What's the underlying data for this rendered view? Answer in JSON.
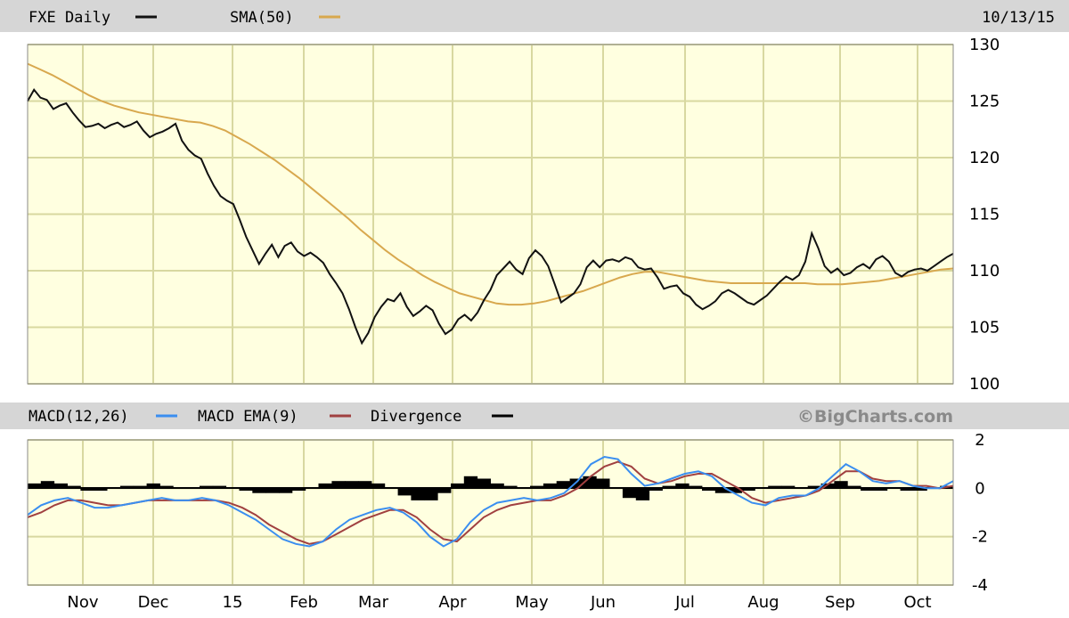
{
  "header": {
    "symbol_label": "FXE Daily",
    "sma_label": "SMA(50)",
    "date": "10/13/15"
  },
  "macd_header": {
    "macd_label": "MACD(12,26)",
    "ema_label": "MACD EMA(9)",
    "div_label": "Divergence",
    "brand": "©BigCharts.com"
  },
  "colors": {
    "price": "#111111",
    "sma": "#d8a84e",
    "macd": "#3a8ef0",
    "ema": "#a04040",
    "divergence": "#000000",
    "plot_bg": "#ffffe0",
    "grid": "#d8d8a0",
    "header_bg": "#d6d6d6"
  },
  "chart_data": [
    {
      "type": "line",
      "series": [
        {
          "name": "FXE Daily",
          "values": [
            125.0,
            126.0,
            125.3,
            125.1,
            124.3,
            124.6,
            124.8,
            124.0,
            123.3,
            122.7,
            122.8,
            123.0,
            122.6,
            122.9,
            123.1,
            122.7,
            122.9,
            123.2,
            122.4,
            121.8,
            122.1,
            122.3,
            122.6,
            123.0,
            121.5,
            120.7,
            120.2,
            119.9,
            118.6,
            117.5,
            116.6,
            116.2,
            115.9,
            114.5,
            113.0,
            111.8,
            110.6,
            111.5,
            112.3,
            111.2,
            112.2,
            112.5,
            111.7,
            111.3,
            111.6,
            111.2,
            110.7,
            109.7,
            108.9,
            108.0,
            106.6,
            105.0,
            103.6,
            104.5,
            105.9,
            106.8,
            107.5,
            107.3,
            108.0,
            106.8,
            106.0,
            106.4,
            106.9,
            106.5,
            105.3,
            104.4,
            104.8,
            105.7,
            106.1,
            105.6,
            106.3,
            107.4,
            108.3,
            109.6,
            110.2,
            110.8,
            110.1,
            109.7,
            111.1,
            111.8,
            111.3,
            110.4,
            108.8,
            107.2,
            107.6,
            108.0,
            108.8,
            110.3,
            110.9,
            110.3,
            110.9,
            111.0,
            110.8,
            111.2,
            111.0,
            110.3,
            110.1,
            110.2,
            109.4,
            108.4,
            108.6,
            108.7,
            108.0,
            107.7,
            107.0,
            106.6,
            106.9,
            107.3,
            108.0,
            108.3,
            108.0,
            107.6,
            107.2,
            107.0,
            107.4,
            107.8,
            108.4,
            109.0,
            109.5,
            109.2,
            109.6,
            110.8,
            113.3,
            112.0,
            110.4,
            109.8,
            110.2,
            109.6,
            109.8,
            110.3,
            110.6,
            110.2,
            111.0,
            111.3,
            110.8,
            109.8,
            109.5,
            109.9,
            110.1,
            110.2,
            110.0,
            110.4,
            110.8,
            111.2,
            111.5
          ]
        },
        {
          "name": "SMA(50)",
          "values": [
            128.3,
            127.8,
            127.3,
            126.7,
            126.1,
            125.5,
            125.0,
            124.6,
            124.3,
            124.0,
            123.8,
            123.6,
            123.4,
            123.2,
            123.1,
            122.8,
            122.4,
            121.8,
            121.2,
            120.5,
            119.8,
            119.0,
            118.2,
            117.3,
            116.4,
            115.5,
            114.6,
            113.6,
            112.7,
            111.8,
            111.0,
            110.3,
            109.6,
            109.0,
            108.5,
            108.0,
            107.7,
            107.4,
            107.1,
            107.0,
            107.0,
            107.1,
            107.3,
            107.6,
            107.9,
            108.2,
            108.6,
            109.0,
            109.4,
            109.7,
            109.9,
            109.9,
            109.7,
            109.5,
            109.3,
            109.1,
            109.0,
            108.9,
            108.9,
            108.9,
            108.9,
            108.9,
            108.9,
            108.9,
            108.8,
            108.8,
            108.8,
            108.9,
            109.0,
            109.1,
            109.3,
            109.5,
            109.7,
            109.9,
            110.1,
            110.2
          ]
        }
      ],
      "yrange": [
        100,
        130
      ],
      "yticks": [
        "130",
        "125",
        "120",
        "115",
        "110",
        "105",
        "100"
      ],
      "xticks": [
        "Nov",
        "Dec",
        "15",
        "Feb",
        "Mar",
        "Apr",
        "May",
        "Jun",
        "Jul",
        "Aug",
        "Sep",
        "Oct"
      ]
    },
    {
      "type": "line",
      "series": [
        {
          "name": "MACD(12,26)",
          "values": [
            -1.1,
            -0.7,
            -0.5,
            -0.4,
            -0.6,
            -0.8,
            -0.8,
            -0.7,
            -0.6,
            -0.5,
            -0.4,
            -0.5,
            -0.5,
            -0.4,
            -0.5,
            -0.7,
            -1.0,
            -1.3,
            -1.7,
            -2.1,
            -2.3,
            -2.4,
            -2.2,
            -1.7,
            -1.3,
            -1.1,
            -0.9,
            -0.8,
            -1.0,
            -1.4,
            -2.0,
            -2.4,
            -2.1,
            -1.4,
            -0.9,
            -0.6,
            -0.5,
            -0.4,
            -0.5,
            -0.4,
            -0.2,
            0.3,
            1.0,
            1.3,
            1.2,
            0.6,
            0.1,
            0.2,
            0.4,
            0.6,
            0.7,
            0.5,
            0.0,
            -0.3,
            -0.6,
            -0.7,
            -0.4,
            -0.3,
            -0.3,
            0.0,
            0.5,
            1.0,
            0.7,
            0.3,
            0.2,
            0.3,
            0.1,
            0.0,
            0.0,
            0.3
          ]
        },
        {
          "name": "MACD EMA(9)",
          "values": [
            -1.2,
            -1.0,
            -0.7,
            -0.5,
            -0.5,
            -0.6,
            -0.7,
            -0.7,
            -0.6,
            -0.5,
            -0.5,
            -0.5,
            -0.5,
            -0.5,
            -0.5,
            -0.6,
            -0.8,
            -1.1,
            -1.5,
            -1.8,
            -2.1,
            -2.3,
            -2.2,
            -1.9,
            -1.6,
            -1.3,
            -1.1,
            -0.9,
            -0.9,
            -1.2,
            -1.7,
            -2.1,
            -2.2,
            -1.7,
            -1.2,
            -0.9,
            -0.7,
            -0.6,
            -0.5,
            -0.5,
            -0.3,
            0.0,
            0.5,
            0.9,
            1.1,
            0.9,
            0.4,
            0.2,
            0.3,
            0.5,
            0.6,
            0.6,
            0.3,
            0.0,
            -0.4,
            -0.6,
            -0.5,
            -0.4,
            -0.3,
            -0.1,
            0.3,
            0.7,
            0.7,
            0.4,
            0.3,
            0.3,
            0.1,
            0.1,
            0.0,
            0.1
          ]
        },
        {
          "name": "Divergence",
          "values": [
            0.2,
            0.3,
            0.2,
            0.1,
            -0.1,
            -0.1,
            0.0,
            0.1,
            0.1,
            0.2,
            0.1,
            0.0,
            0.0,
            0.1,
            0.1,
            0.0,
            -0.1,
            -0.2,
            -0.2,
            -0.2,
            -0.1,
            0.0,
            0.2,
            0.3,
            0.3,
            0.3,
            0.2,
            0.0,
            -0.3,
            -0.5,
            -0.5,
            -0.2,
            0.2,
            0.5,
            0.4,
            0.2,
            0.1,
            0.0,
            0.1,
            0.2,
            0.3,
            0.4,
            0.5,
            0.4,
            0.0,
            -0.4,
            -0.5,
            -0.1,
            0.1,
            0.2,
            0.1,
            -0.1,
            -0.2,
            -0.2,
            -0.1,
            0.0,
            0.1,
            0.1,
            0.0,
            0.1,
            0.2,
            0.3,
            0.1,
            -0.1,
            -0.1,
            0.0,
            -0.1,
            -0.1,
            0.0,
            0.1
          ]
        }
      ],
      "yrange": [
        -4,
        2
      ],
      "yticks": [
        "2",
        "0",
        "-2",
        "-4"
      ],
      "grid": true
    }
  ]
}
